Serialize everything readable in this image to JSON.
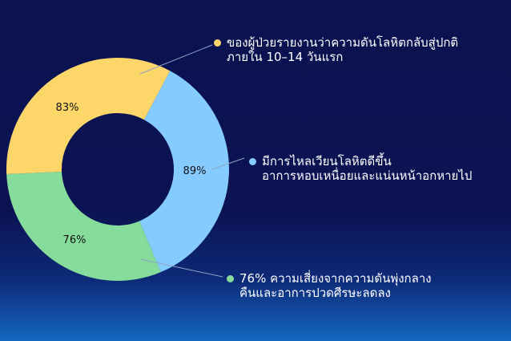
{
  "chart_data": {
    "type": "pie",
    "donut": true,
    "slices": [
      {
        "label": "89%",
        "value": 89,
        "color": "#86cbfd",
        "legend": [
          "มีการไหลเวียนโลหิตดีขึ้น",
          "อาการหอบเหนื่อยและแน่นหน้าอกหายไป"
        ]
      },
      {
        "label": "76%",
        "value": 76,
        "color": "#85dc9b",
        "legend": [
          "76% ความเสี่ยงจากความดันพุ่งกลาง",
          "คืนและอาการปวดศีรษะลดลง"
        ]
      },
      {
        "label": "83%",
        "value": 83,
        "color": "#fdd66a",
        "legend": [
          "ของผู้ป่วยรายงานว่าความดันโลหิตกลับสู่ปกติ",
          "ภายใน 10–14 วันแรก"
        ]
      }
    ],
    "leader_line_color": "#8fa3c6"
  }
}
